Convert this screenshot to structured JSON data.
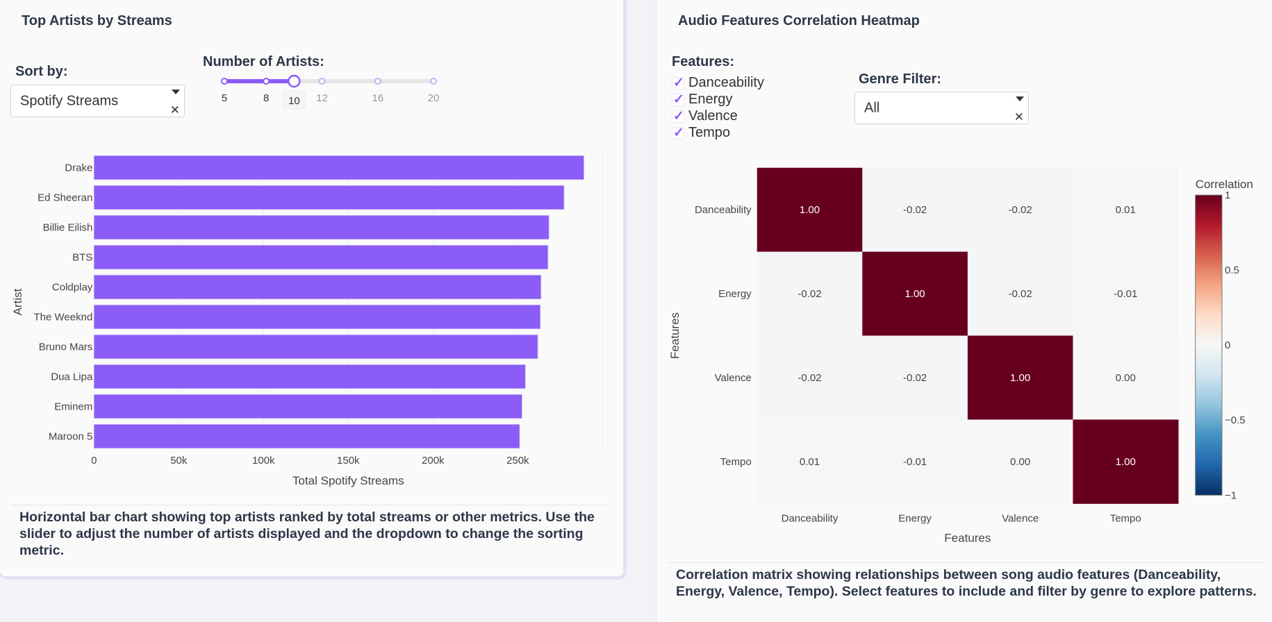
{
  "left_panel": {
    "title": "Top Artists by Streams",
    "sort_label": "Sort by:",
    "sort_value": "Spotify Streams",
    "slider_label": "Number of Artists:",
    "slider": {
      "marks": [
        5,
        8,
        10,
        12,
        16,
        20
      ],
      "min": 5,
      "max": 20,
      "value": 10,
      "accent": "#8b5cf6"
    },
    "description": "Horizontal bar chart showing top artists ranked by total streams or other metrics. Use the slider to adjust the number of artists displayed and the dropdown to change the sorting metric."
  },
  "right_panel": {
    "title": "Audio Features Correlation Heatmap",
    "features_label": "Features:",
    "features": [
      {
        "label": "Danceability",
        "checked": true
      },
      {
        "label": "Energy",
        "checked": true
      },
      {
        "label": "Valence",
        "checked": true
      },
      {
        "label": "Tempo",
        "checked": true
      }
    ],
    "genre_label": "Genre Filter:",
    "genre_value": "All",
    "description": "Correlation matrix showing relationships between song audio features (Danceability, Energy, Valence, Tempo). Select features to include and filter by genre to explore patterns."
  },
  "chart_data": [
    {
      "type": "bar",
      "orientation": "horizontal",
      "categories": [
        "Drake",
        "Ed Sheeran",
        "Billie Eilish",
        "BTS",
        "Coldplay",
        "The Weeknd",
        "Bruno Mars",
        "Dua Lipa",
        "Eminem",
        "Maroon 5"
      ],
      "values": [
        289000,
        277300,
        268400,
        267800,
        263700,
        263300,
        261800,
        254500,
        252500,
        251100
      ],
      "xlabel": "Total Spotify Streams",
      "ylabel": "Artist",
      "xlim": [
        0,
        300000
      ],
      "xticks": [
        0,
        50000,
        100000,
        150000,
        200000,
        250000
      ],
      "xtick_labels": [
        "0",
        "50k",
        "100k",
        "150k",
        "200k",
        "250k"
      ],
      "bar_color": "#8b5cf6",
      "grid": true
    },
    {
      "type": "heatmap",
      "x": [
        "Danceability",
        "Energy",
        "Valence",
        "Tempo"
      ],
      "y": [
        "Danceability",
        "Energy",
        "Valence",
        "Tempo"
      ],
      "z": [
        [
          1.0,
          -0.02,
          -0.02,
          0.01
        ],
        [
          -0.02,
          1.0,
          -0.02,
          -0.01
        ],
        [
          -0.02,
          -0.02,
          1.0,
          0.0
        ],
        [
          0.01,
          -0.01,
          0.0,
          1.0
        ]
      ],
      "text": [
        [
          "1.00",
          "-0.02",
          "-0.02",
          "0.01"
        ],
        [
          "-0.02",
          "1.00",
          "-0.02",
          "-0.01"
        ],
        [
          "-0.02",
          "-0.02",
          "1.00",
          "0.00"
        ],
        [
          "0.01",
          "-0.01",
          "0.00",
          "1.00"
        ]
      ],
      "xlabel": "Features",
      "ylabel": "Features",
      "colorscale": "RdBu (reversed)",
      "colorbar": {
        "title": "Correlation",
        "range": [
          -1,
          1
        ],
        "ticks": [
          1,
          0.5,
          0,
          -0.5,
          -1
        ],
        "tick_labels": [
          "1",
          "0.5",
          "0",
          "−0.5",
          "−1"
        ]
      }
    }
  ]
}
